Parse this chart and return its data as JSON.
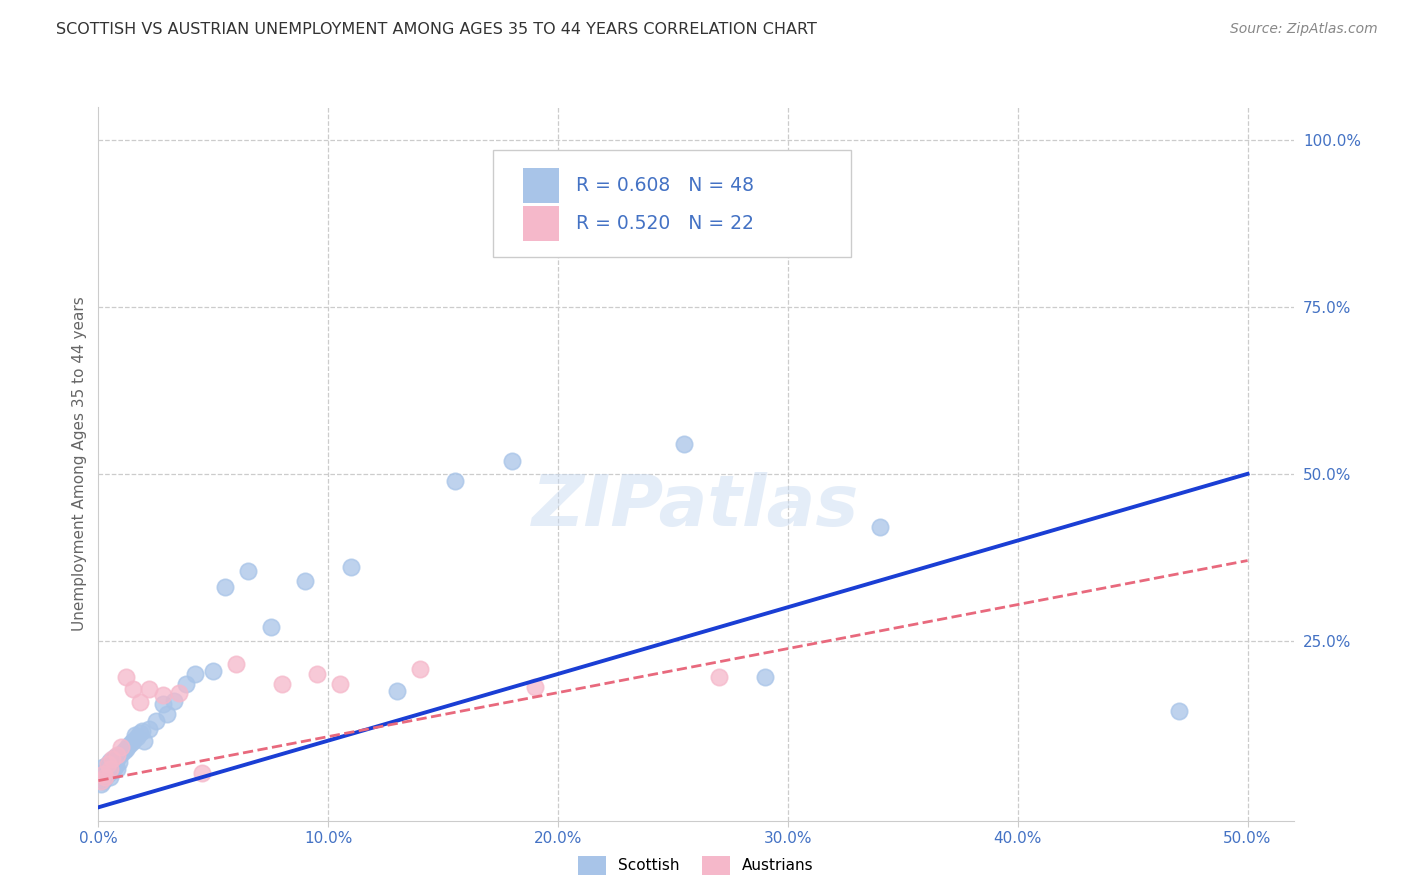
{
  "title": "SCOTTISH VS AUSTRIAN UNEMPLOYMENT AMONG AGES 35 TO 44 YEARS CORRELATION CHART",
  "source": "Source: ZipAtlas.com",
  "ylabel": "Unemployment Among Ages 35 to 44 years",
  "xlim": [
    0.0,
    0.52
  ],
  "ylim": [
    -0.02,
    1.05
  ],
  "xtick_labels": [
    "0.0%",
    "10.0%",
    "20.0%",
    "30.0%",
    "40.0%",
    "50.0%"
  ],
  "xtick_vals": [
    0.0,
    0.1,
    0.2,
    0.3,
    0.4,
    0.5
  ],
  "ytick_vals": [
    0.25,
    0.5,
    0.75,
    1.0
  ],
  "ytick_labels": [
    "25.0%",
    "50.0%",
    "75.0%",
    "100.0%"
  ],
  "scottish_color": "#a8c4e8",
  "austrian_color": "#f5b8ca",
  "scottish_line_color": "#1a3ed4",
  "austrian_line_color": "#e8697d",
  "legend_text_color": "#4472c4",
  "R_scottish": 0.608,
  "N_scottish": 48,
  "R_austrian": 0.52,
  "N_austrian": 22,
  "scottish_line_x0": 0.0,
  "scottish_line_y0": 0.0,
  "scottish_line_x1": 0.5,
  "scottish_line_y1": 0.5,
  "austrian_line_x0": 0.0,
  "austrian_line_y0": 0.04,
  "austrian_line_x1": 0.5,
  "austrian_line_y1": 0.37,
  "scottish_x": [
    0.001,
    0.001,
    0.002,
    0.002,
    0.003,
    0.003,
    0.004,
    0.004,
    0.005,
    0.005,
    0.006,
    0.006,
    0.007,
    0.007,
    0.008,
    0.008,
    0.009,
    0.01,
    0.011,
    0.012,
    0.013,
    0.014,
    0.015,
    0.016,
    0.017,
    0.018,
    0.019,
    0.02,
    0.022,
    0.025,
    0.028,
    0.03,
    0.033,
    0.038,
    0.042,
    0.05,
    0.055,
    0.065,
    0.075,
    0.09,
    0.11,
    0.13,
    0.155,
    0.18,
    0.255,
    0.29,
    0.34,
    0.47
  ],
  "scottish_y": [
    0.035,
    0.05,
    0.04,
    0.06,
    0.045,
    0.055,
    0.05,
    0.065,
    0.045,
    0.07,
    0.055,
    0.065,
    0.06,
    0.075,
    0.058,
    0.072,
    0.068,
    0.08,
    0.085,
    0.088,
    0.092,
    0.096,
    0.1,
    0.108,
    0.105,
    0.112,
    0.115,
    0.1,
    0.118,
    0.13,
    0.155,
    0.14,
    0.16,
    0.185,
    0.2,
    0.205,
    0.33,
    0.355,
    0.27,
    0.34,
    0.36,
    0.175,
    0.49,
    0.52,
    0.545,
    0.195,
    0.42,
    0.145
  ],
  "austrian_x": [
    0.001,
    0.002,
    0.003,
    0.004,
    0.005,
    0.006,
    0.008,
    0.01,
    0.012,
    0.015,
    0.018,
    0.022,
    0.028,
    0.035,
    0.045,
    0.06,
    0.08,
    0.095,
    0.105,
    0.14,
    0.19,
    0.27
  ],
  "austrian_y": [
    0.04,
    0.05,
    0.045,
    0.065,
    0.058,
    0.072,
    0.078,
    0.09,
    0.195,
    0.178,
    0.158,
    0.178,
    0.168,
    0.172,
    0.052,
    0.215,
    0.185,
    0.2,
    0.185,
    0.208,
    0.18,
    0.195
  ],
  "watermark_text": "ZIPatlas",
  "grid_color": "#cccccc",
  "background_color": "#ffffff",
  "title_color": "#333333",
  "axis_label_color": "#666666",
  "tick_color": "#4472c4"
}
